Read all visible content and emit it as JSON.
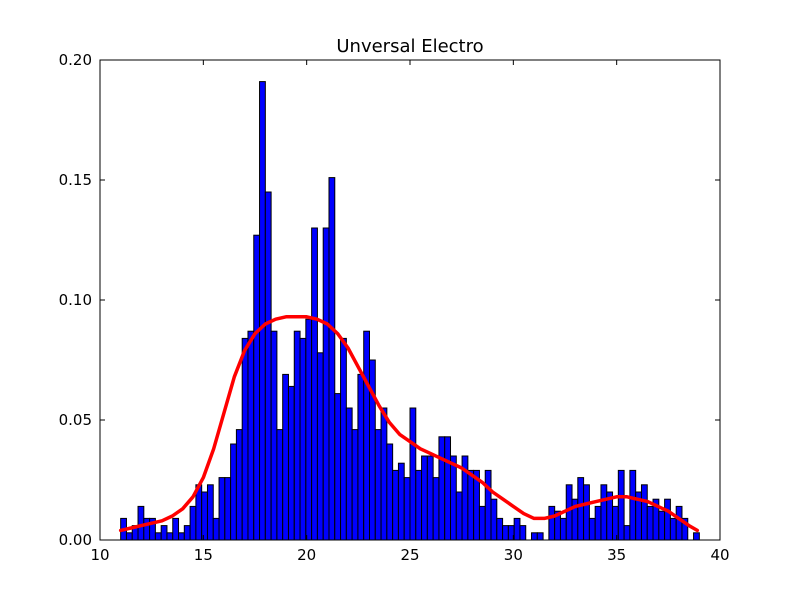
{
  "chart_data": {
    "type": "bar",
    "title": "Unversal Electro",
    "xlabel": "",
    "ylabel": "",
    "xlim": [
      10,
      40
    ],
    "ylim": [
      0,
      0.2
    ],
    "x_ticks": [
      10,
      15,
      20,
      25,
      30,
      35,
      40
    ],
    "y_ticks": [
      0.0,
      0.05,
      0.1,
      0.15,
      0.2
    ],
    "x_tick_labels": [
      "10",
      "15",
      "20",
      "25",
      "30",
      "35",
      "40"
    ],
    "y_tick_labels": [
      "0.00",
      "0.05",
      "0.10",
      "0.15",
      "0.20"
    ],
    "bin_width": 0.28,
    "bins_start": [
      11.0,
      11.28,
      11.56,
      11.84,
      12.12,
      12.4,
      12.68,
      12.96,
      13.24,
      13.52,
      13.8,
      14.08,
      14.36,
      14.64,
      14.92,
      15.2,
      15.48,
      15.76,
      16.04,
      16.32,
      16.6,
      16.88,
      17.16,
      17.44,
      17.72,
      18.0,
      18.28,
      18.56,
      18.84,
      19.12,
      19.4,
      19.68,
      19.96,
      20.24,
      20.52,
      20.8,
      21.08,
      21.36,
      21.64,
      21.92,
      22.2,
      22.48,
      22.76,
      23.04,
      23.32,
      23.6,
      23.88,
      24.16,
      24.44,
      24.72,
      25.0,
      25.28,
      25.56,
      25.84,
      26.12,
      26.4,
      26.68,
      26.96,
      27.24,
      27.52,
      27.8,
      28.08,
      28.36,
      28.64,
      28.92,
      29.2,
      29.48,
      29.76,
      30.04,
      30.32,
      30.6,
      30.88,
      31.16,
      31.44,
      31.72,
      32.0,
      32.28,
      32.56,
      32.84,
      33.12,
      33.4,
      33.68,
      33.96,
      34.24,
      34.52,
      34.8,
      35.08,
      35.36,
      35.64,
      35.92,
      36.2,
      36.48,
      36.76,
      37.04,
      37.32,
      37.6,
      37.88,
      38.16,
      38.44,
      38.72
    ],
    "values": [
      0.009,
      0.003,
      0.006,
      0.014,
      0.009,
      0.009,
      0.003,
      0.006,
      0.003,
      0.009,
      0.003,
      0.006,
      0.014,
      0.023,
      0.02,
      0.023,
      0.009,
      0.026,
      0.026,
      0.04,
      0.046,
      0.084,
      0.087,
      0.127,
      0.191,
      0.145,
      0.087,
      0.046,
      0.069,
      0.064,
      0.087,
      0.084,
      0.092,
      0.13,
      0.078,
      0.13,
      0.151,
      0.061,
      0.084,
      0.055,
      0.046,
      0.069,
      0.087,
      0.075,
      0.046,
      0.055,
      0.04,
      0.029,
      0.032,
      0.026,
      0.055,
      0.029,
      0.035,
      0.035,
      0.026,
      0.043,
      0.043,
      0.035,
      0.02,
      0.035,
      0.029,
      0.029,
      0.014,
      0.029,
      0.017,
      0.009,
      0.006,
      0.006,
      0.009,
      0.006,
      0.0,
      0.003,
      0.003,
      0.0,
      0.014,
      0.012,
      0.009,
      0.023,
      0.017,
      0.026,
      0.023,
      0.009,
      0.014,
      0.023,
      0.02,
      0.014,
      0.029,
      0.006,
      0.029,
      0.02,
      0.023,
      0.014,
      0.017,
      0.012,
      0.017,
      0.009,
      0.014,
      0.009,
      0.0,
      0.003
    ],
    "bar_color": "#0000ff",
    "bar_edge_color": "#000000",
    "kde": {
      "x": [
        11.0,
        11.5,
        12.0,
        12.5,
        13.0,
        13.5,
        14.0,
        14.5,
        15.0,
        15.5,
        16.0,
        16.5,
        17.0,
        17.5,
        18.0,
        18.5,
        19.0,
        19.5,
        20.0,
        20.5,
        21.0,
        21.5,
        22.0,
        22.5,
        23.0,
        23.5,
        24.0,
        24.5,
        25.0,
        25.5,
        26.0,
        26.5,
        27.0,
        27.5,
        28.0,
        28.5,
        29.0,
        29.5,
        30.0,
        30.5,
        31.0,
        31.5,
        32.0,
        32.5,
        33.0,
        33.5,
        34.0,
        34.5,
        35.0,
        35.5,
        36.0,
        36.5,
        37.0,
        37.5,
        38.0,
        38.5,
        38.9
      ],
      "y": [
        0.004,
        0.005,
        0.006,
        0.007,
        0.008,
        0.01,
        0.013,
        0.018,
        0.026,
        0.038,
        0.053,
        0.068,
        0.079,
        0.086,
        0.09,
        0.092,
        0.093,
        0.093,
        0.093,
        0.092,
        0.09,
        0.086,
        0.08,
        0.072,
        0.064,
        0.056,
        0.049,
        0.044,
        0.041,
        0.038,
        0.036,
        0.034,
        0.032,
        0.03,
        0.027,
        0.024,
        0.02,
        0.017,
        0.014,
        0.011,
        0.009,
        0.009,
        0.01,
        0.012,
        0.014,
        0.015,
        0.016,
        0.017,
        0.018,
        0.018,
        0.017,
        0.016,
        0.014,
        0.012,
        0.009,
        0.006,
        0.004
      ],
      "color": "#ff0000"
    }
  }
}
